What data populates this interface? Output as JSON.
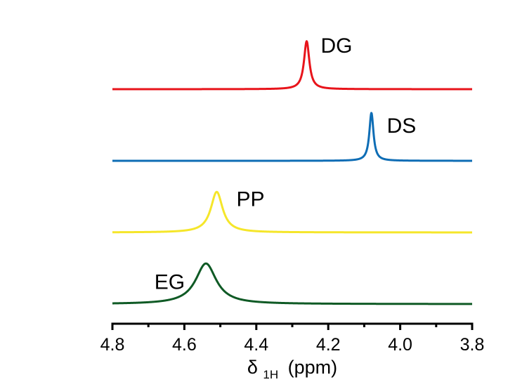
{
  "chart_data": {
    "type": "line",
    "title": "",
    "xlabel": {
      "symbol": "δ",
      "subscript": "1H",
      "unit": "(ppm)"
    },
    "ylabel": "",
    "xlim": [
      4.8,
      3.8
    ],
    "x_reversed": true,
    "x_ticks": [
      "4.8",
      "4.6",
      "4.4",
      "4.2",
      "4.0",
      "3.8"
    ],
    "y_axis_visible": false,
    "grid": false,
    "legend": "none",
    "series": [
      {
        "name": "DG",
        "color": "#e8141b",
        "peak_ppm": 4.26,
        "peak_width_ppm": 0.009,
        "relative_height": 0.65,
        "baseline_offset": 3.0
      },
      {
        "name": "DS",
        "color": "#0e6db5",
        "peak_ppm": 4.08,
        "peak_width_ppm": 0.007,
        "relative_height": 0.65,
        "baseline_offset": 2.0
      },
      {
        "name": "PP",
        "color": "#f5e62a",
        "peak_ppm": 4.51,
        "peak_width_ppm": 0.02,
        "relative_height": 0.55,
        "baseline_offset": 1.0
      },
      {
        "name": "EG",
        "color": "#0f5a25",
        "peak_ppm": 4.54,
        "peak_width_ppm": 0.035,
        "relative_height": 0.55,
        "baseline_offset": 0.0
      }
    ]
  }
}
